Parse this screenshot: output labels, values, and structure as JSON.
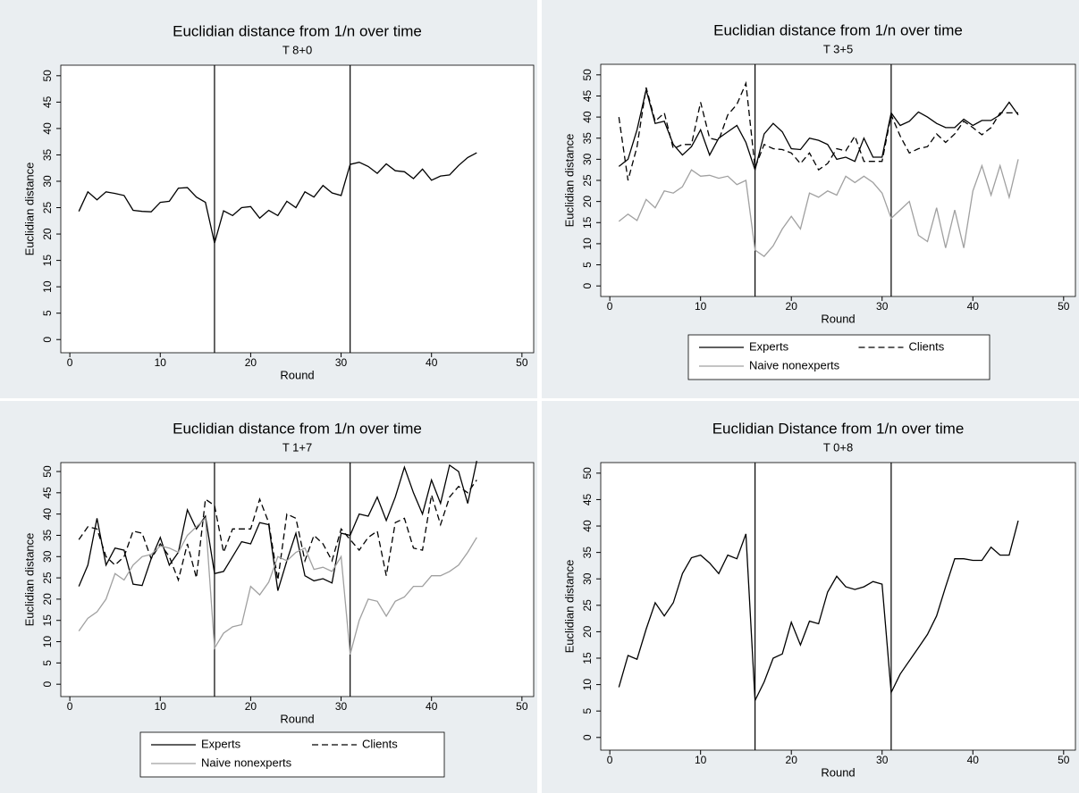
{
  "chart_data": [
    {
      "type": "line",
      "title": "Euclidian distance from 1/n over time",
      "subtitle": "T 8+0",
      "xlabel": "Round",
      "ylabel": "Euclidian distance",
      "x": [
        1,
        2,
        3,
        4,
        5,
        6,
        7,
        8,
        9,
        10,
        11,
        12,
        13,
        14,
        15,
        16,
        17,
        18,
        19,
        20,
        21,
        22,
        23,
        24,
        25,
        26,
        27,
        28,
        29,
        30,
        31,
        32,
        33,
        34,
        35,
        36,
        37,
        38,
        39,
        40,
        41,
        42,
        43,
        44,
        45
      ],
      "values": [
        24.3,
        28,
        26.5,
        28,
        27.7,
        27.3,
        24.5,
        24.3,
        24.2,
        26,
        26.2,
        28.7,
        28.8,
        27,
        26,
        18.3,
        24.4,
        23.5,
        25,
        25.2,
        23,
        24.5,
        23.5,
        26.2,
        25,
        28,
        27,
        29.2,
        27.8,
        27.3,
        33.2,
        33.6,
        32.8,
        31.5,
        33.3,
        32,
        31.8,
        30.5,
        32.3,
        30.2,
        31,
        31.2,
        33,
        34.5,
        35.4
      ],
      "color": "#000000",
      "vlines": [
        16,
        31
      ],
      "xlim": [
        -1,
        51.3
      ],
      "ylim": [
        -2.5,
        52
      ],
      "xticks": [
        0,
        10,
        20,
        30,
        40,
        50
      ],
      "yticks": [
        0,
        5,
        10,
        15,
        20,
        25,
        30,
        35,
        40,
        45,
        50
      ]
    },
    {
      "type": "line",
      "title": "Euclidian distance from 1/n over time",
      "subtitle": "T 3+5",
      "xlabel": "Round",
      "ylabel": "Euclidian distance",
      "x": [
        1,
        2,
        3,
        4,
        5,
        6,
        7,
        8,
        9,
        10,
        11,
        12,
        13,
        14,
        15,
        16,
        17,
        18,
        19,
        20,
        21,
        22,
        23,
        24,
        25,
        26,
        27,
        28,
        29,
        30,
        31,
        32,
        33,
        34,
        35,
        36,
        37,
        38,
        39,
        40,
        41,
        42,
        43,
        44,
        45
      ],
      "series": [
        {
          "name": "Experts",
          "color": "#000000",
          "style": "solid",
          "values": [
            28.3,
            30,
            37,
            46.5,
            38.5,
            39,
            33.5,
            31,
            33,
            37,
            31,
            35,
            36.5,
            38,
            34,
            27.5,
            36,
            38.5,
            36.5,
            32.5,
            32.3,
            35,
            34.5,
            33.5,
            30,
            30.5,
            29.5,
            35,
            30.5,
            30.5,
            41,
            38,
            39,
            41.2,
            40,
            38.5,
            37.5,
            37.5,
            39.5,
            38,
            39.2,
            39.2,
            40.5,
            43.5,
            40.5
          ]
        },
        {
          "name": "Clients",
          "color": "#000000",
          "style": "dashed",
          "values": [
            40,
            25,
            33,
            47,
            39,
            41,
            32.5,
            33.5,
            33.5,
            43.5,
            35,
            34.5,
            40.5,
            43,
            48,
            28,
            33.5,
            32.5,
            32.3,
            31.5,
            29,
            31.5,
            27.5,
            29,
            32.5,
            32,
            35.5,
            29.5,
            29.5,
            29.5,
            40.5,
            35.5,
            31.5,
            32.5,
            33,
            36,
            34,
            36,
            39,
            37.5,
            35.8,
            37.5,
            41,
            41,
            41
          ]
        },
        {
          "name": "Naive nonexperts",
          "color": "#a0a0a0",
          "style": "solid",
          "values": [
            15.3,
            17,
            15.5,
            20.5,
            18.5,
            22.5,
            22,
            23.5,
            27.5,
            26,
            26.2,
            25.5,
            26,
            24,
            25,
            8.5,
            7,
            9.5,
            13.5,
            16.5,
            13.5,
            22,
            21,
            22.5,
            21.5,
            26,
            24.5,
            26,
            24.5,
            22,
            16,
            18,
            20,
            12,
            10.5,
            18.5,
            9,
            18,
            9,
            22.5,
            28.5,
            21.5,
            28.5,
            21,
            30
          ]
        }
      ],
      "vlines": [
        16,
        31
      ],
      "xlim": [
        -1,
        51.3
      ],
      "ylim": [
        -2.5,
        52.5
      ],
      "xticks": [
        0,
        10,
        20,
        30,
        40,
        50
      ],
      "yticks": [
        0,
        5,
        10,
        15,
        20,
        25,
        30,
        35,
        40,
        45,
        50
      ]
    },
    {
      "type": "line",
      "title": "Euclidian distance from 1/n over time",
      "subtitle": "T 1+7",
      "xlabel": "Round",
      "ylabel": "Euclidian distance",
      "x": [
        1,
        2,
        3,
        4,
        5,
        6,
        7,
        8,
        9,
        10,
        11,
        12,
        13,
        14,
        15,
        16,
        17,
        18,
        19,
        20,
        21,
        22,
        23,
        24,
        25,
        26,
        27,
        28,
        29,
        30,
        31,
        32,
        33,
        34,
        35,
        36,
        37,
        38,
        39,
        40,
        41,
        42,
        43,
        44,
        45
      ],
      "series": [
        {
          "name": "Experts",
          "color": "#000000",
          "style": "solid",
          "values": [
            23,
            28,
            39,
            28,
            32,
            31.5,
            23.5,
            23.2,
            29.5,
            34.5,
            28,
            31,
            41,
            36.5,
            39.5,
            26,
            26.5,
            30,
            33.5,
            33,
            38,
            37.5,
            22,
            29,
            35.5,
            25.5,
            24.3,
            24.8,
            23.8,
            35.5,
            35,
            40,
            39.5,
            44,
            38.5,
            44,
            51,
            45,
            40,
            48,
            42.5,
            51.5,
            50,
            42.5,
            52.5
          ]
        },
        {
          "name": "Clients",
          "color": "#000000",
          "style": "dashed",
          "values": [
            34,
            37,
            36.5,
            30,
            28,
            30,
            36,
            35.5,
            29.5,
            33,
            30,
            24.5,
            33,
            25,
            43.5,
            42,
            31,
            36.5,
            36.5,
            36.5,
            43.5,
            38,
            24.5,
            40,
            39,
            29,
            35,
            33,
            29,
            36.5,
            34,
            31.5,
            34.5,
            36,
            25.5,
            38,
            39,
            32,
            31.5,
            44.5,
            37.5,
            44,
            46.5,
            45,
            48
          ]
        },
        {
          "name": "Naive nonexperts",
          "color": "#a0a0a0",
          "style": "solid",
          "values": [
            12.5,
            15.5,
            17,
            20,
            26,
            24.5,
            28,
            30,
            30.5,
            32.5,
            32,
            31,
            35,
            37,
            39,
            8.5,
            12,
            13.5,
            14,
            23,
            21,
            24,
            30,
            29,
            31,
            32,
            27,
            27.5,
            26.5,
            30,
            7,
            15,
            20,
            19.5,
            16,
            19.5,
            20.5,
            23,
            23,
            25.5,
            25.5,
            26.5,
            28,
            31,
            34.5
          ]
        }
      ],
      "vlines": [
        16,
        31
      ],
      "xlim": [
        -1,
        51.3
      ],
      "ylim": [
        -2.9,
        52.1
      ],
      "xticks": [
        0,
        10,
        20,
        30,
        40,
        50
      ],
      "yticks": [
        0,
        5,
        10,
        15,
        20,
        25,
        30,
        35,
        40,
        45,
        50
      ]
    },
    {
      "type": "line",
      "title": "Euclidian Distance from 1/n over time",
      "subtitle": "T 0+8",
      "xlabel": "Round",
      "ylabel": "Euclidian distance",
      "x": [
        1,
        2,
        3,
        4,
        5,
        6,
        7,
        8,
        9,
        10,
        11,
        12,
        13,
        14,
        15,
        16,
        17,
        18,
        19,
        20,
        21,
        22,
        23,
        24,
        25,
        26,
        27,
        28,
        29,
        30,
        31,
        32,
        33,
        34,
        35,
        36,
        37,
        38,
        39,
        40,
        41,
        42,
        43,
        44,
        45
      ],
      "values": [
        9.5,
        15.5,
        14.8,
        20.5,
        25.5,
        23,
        25.5,
        31,
        34,
        34.5,
        33,
        31,
        34.5,
        33.8,
        38.5,
        7,
        10.5,
        15,
        15.8,
        21.8,
        17.5,
        22,
        21.5,
        27.5,
        30.5,
        28.5,
        28,
        28.5,
        29.5,
        29,
        8.5,
        12,
        14.5,
        17,
        19.5,
        23,
        28.5,
        33.8,
        33.8,
        33.5,
        33.5,
        36,
        34.5,
        34.5,
        41
      ],
      "color": "#000000",
      "vlines": [
        16,
        31
      ],
      "xlim": [
        -1,
        51.3
      ],
      "ylim": [
        -2.4,
        52
      ],
      "xticks": [
        0,
        10,
        20,
        30,
        40,
        50
      ],
      "yticks": [
        0,
        5,
        10,
        15,
        20,
        25,
        30,
        35,
        40,
        45,
        50
      ]
    }
  ]
}
